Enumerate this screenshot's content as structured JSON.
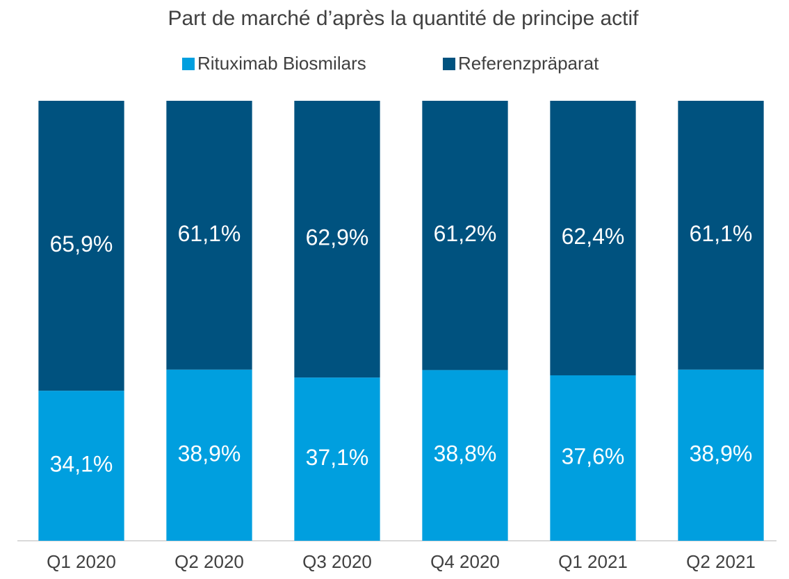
{
  "chart_data": {
    "type": "stacked_bar",
    "title": "Part de marché d’après la quantité de principe actif",
    "categories": [
      "Q1 2020",
      "Q2 2020",
      "Q3 2020",
      "Q4 2020",
      "Q1 2021",
      "Q2 2021"
    ],
    "series": [
      {
        "name": "Rituximab Biosmilars",
        "color": "#009fdf",
        "values": [
          34.1,
          38.9,
          37.1,
          38.8,
          37.6,
          38.9
        ],
        "value_labels": [
          "34,1%",
          "38,9%",
          "37,1%",
          "38,8%",
          "37,6%",
          "38,9%"
        ]
      },
      {
        "name": "Referenzpräparat",
        "color": "#00527f",
        "values": [
          65.9,
          61.1,
          62.9,
          61.2,
          62.4,
          61.1
        ],
        "value_labels": [
          "65,9%",
          "61,1%",
          "62,9%",
          "61,2%",
          "62,4%",
          "61,1%"
        ]
      }
    ],
    "ylim": [
      0,
      100
    ],
    "legend": "top"
  }
}
